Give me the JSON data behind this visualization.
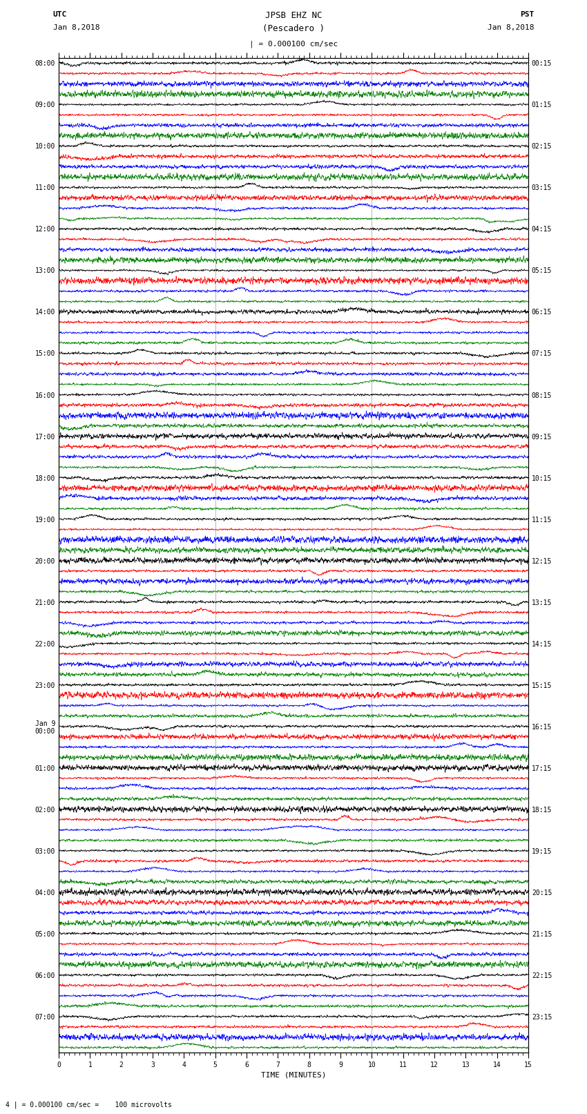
{
  "title_line1": "JPSB EHZ NC",
  "title_line2": "(Pescadero )",
  "scale_text": "| = 0.000100 cm/sec",
  "left_label": "UTC",
  "left_date": "Jan 8,2018",
  "right_label": "PST",
  "right_date": "Jan 8,2018",
  "bottom_label": "TIME (MINUTES)",
  "bottom_note": "4 | = 0.000100 cm/sec =    100 microvolts",
  "utc_times": [
    "08:00",
    "09:00",
    "10:00",
    "11:00",
    "12:00",
    "13:00",
    "14:00",
    "15:00",
    "16:00",
    "17:00",
    "18:00",
    "19:00",
    "20:00",
    "21:00",
    "22:00",
    "23:00",
    "Jan 9\n00:00",
    "01:00",
    "02:00",
    "03:00",
    "04:00",
    "05:00",
    "06:00",
    "07:00"
  ],
  "pst_times": [
    "00:15",
    "01:15",
    "02:15",
    "03:15",
    "04:15",
    "05:15",
    "06:15",
    "07:15",
    "08:15",
    "09:15",
    "10:15",
    "11:15",
    "12:15",
    "13:15",
    "14:15",
    "15:15",
    "16:15",
    "17:15",
    "18:15",
    "19:15",
    "20:15",
    "21:15",
    "22:15",
    "23:15"
  ],
  "num_hours": 24,
  "traces_per_hour": 4,
  "colors": [
    "black",
    "red",
    "blue",
    "green"
  ],
  "xlim": [
    0,
    15
  ],
  "bg_color": "white",
  "fig_width": 8.5,
  "fig_height": 16.13,
  "dpi": 100,
  "noise_seed": 12345,
  "title_fontsize": 9,
  "axis_fontsize": 8,
  "tick_fontsize": 7,
  "label_fontsize": 8,
  "vline_color": "#888888",
  "vline_positions": [
    5,
    10
  ]
}
